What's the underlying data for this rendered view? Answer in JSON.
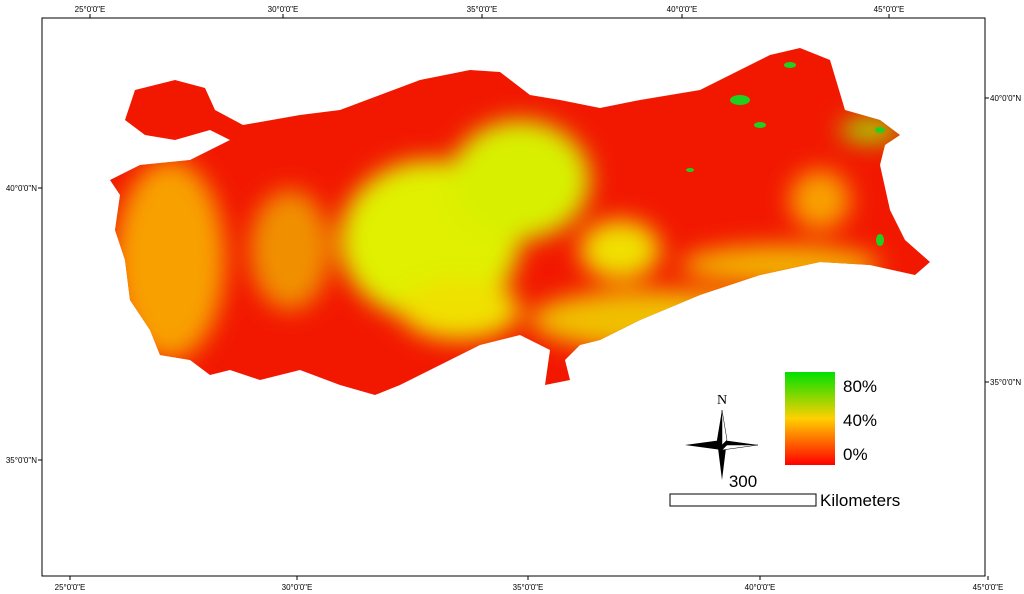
{
  "map": {
    "top_labels": [
      "25°0'0\"E",
      "30°0'0\"E",
      "35°0'0\"E",
      "40°0'0\"E",
      "45°0'0\"E"
    ],
    "bottom_labels": [
      "25°0'0\"E",
      "30°0'0\"E",
      "35°0'0\"E",
      "40°0'0\"E",
      "45°0'0\"E"
    ],
    "left_labels": [
      "40°0'0\"N",
      "35°0'0\"N"
    ],
    "right_labels": [
      "40°0'0\"N",
      "35°0'0\"N"
    ]
  },
  "legend": {
    "labels": [
      "80%",
      "40%",
      "0%"
    ]
  },
  "north_arrow": {
    "label": "N"
  },
  "scale_bar": {
    "value": "300",
    "unit": "Kilometers"
  }
}
